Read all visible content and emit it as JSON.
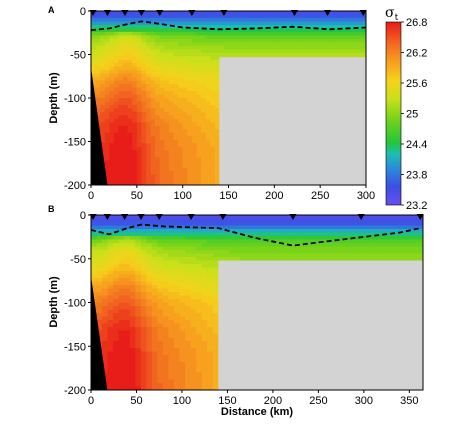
{
  "chart_data": [
    {
      "type": "heatmap",
      "panel_label": "A",
      "xlim": [
        0,
        300
      ],
      "ylim": [
        -200,
        0
      ],
      "xticks": [
        0,
        50,
        100,
        150,
        200,
        250,
        300
      ],
      "yticks": [
        0,
        -50,
        -100,
        -150,
        -200
      ],
      "ylabel": "Depth (m)",
      "xlabel": "",
      "station_markers_km": [
        0,
        18,
        37,
        55,
        75,
        110,
        145,
        222,
        258,
        297
      ],
      "pycnocline": {
        "x": [
          0,
          20,
          40,
          55,
          70,
          100,
          140,
          180,
          220,
          260,
          300
        ],
        "y": [
          -22,
          -20,
          -15,
          -12,
          -14,
          -19,
          -21,
          -20,
          -18,
          -21,
          -19
        ]
      },
      "bathymetry_wedge": {
        "x": [
          0,
          0,
          10,
          18
        ],
        "y": [
          -65,
          -200,
          -200,
          -200
        ]
      },
      "no_data_region": {
        "x_range": [
          140,
          300
        ],
        "y_range": [
          -200,
          -53
        ]
      },
      "contour_field_depth_profile": {
        "depth": [
          0,
          -10,
          -20,
          -30,
          -40,
          -60,
          -80,
          -100,
          -130,
          -160,
          -200
        ],
        "sigma_t_nearshore": [
          23.4,
          23.8,
          24.4,
          25.0,
          25.2,
          25.5,
          25.9,
          26.2,
          26.5,
          26.6,
          26.7
        ],
        "sigma_t_offshore": [
          23.4,
          23.8,
          24.3,
          24.8,
          25.0,
          25.3,
          25.5,
          25.6,
          25.7,
          25.8,
          25.8
        ]
      }
    },
    {
      "type": "heatmap",
      "panel_label": "B",
      "xlim": [
        0,
        365
      ],
      "ylim": [
        -200,
        0
      ],
      "xticks": [
        0,
        50,
        100,
        150,
        200,
        250,
        300,
        350
      ],
      "yticks": [
        0,
        -50,
        -100,
        -150,
        -200
      ],
      "ylabel": "Depth (m)",
      "xlabel": "Distance (km)",
      "station_markers_km": [
        0,
        18,
        37,
        55,
        75,
        110,
        145,
        222,
        297,
        362
      ],
      "pycnocline": {
        "x": [
          0,
          20,
          40,
          55,
          80,
          110,
          140,
          180,
          222,
          260,
          300,
          340,
          362
        ],
        "y": [
          -17,
          -22,
          -15,
          -11,
          -13,
          -14,
          -15,
          -26,
          -35,
          -30,
          -25,
          -20,
          -15
        ]
      },
      "bathymetry_wedge": {
        "x": [
          0,
          0,
          8,
          18
        ],
        "y": [
          -70,
          -200,
          -200,
          -200
        ]
      },
      "no_data_region": {
        "x_range": [
          140,
          365
        ],
        "y_range": [
          -200,
          -52
        ]
      },
      "contour_field_depth_profile": {
        "depth": [
          0,
          -10,
          -20,
          -30,
          -40,
          -60,
          -80,
          -100,
          -130,
          -160,
          -200
        ],
        "sigma_t_nearshore": [
          23.3,
          23.6,
          24.2,
          24.9,
          25.2,
          25.5,
          25.9,
          26.2,
          26.5,
          26.6,
          26.7
        ],
        "sigma_t_offshore": [
          23.3,
          23.6,
          24.2,
          24.7,
          24.9,
          25.2,
          25.4,
          25.6,
          25.7,
          25.8,
          25.8
        ]
      }
    }
  ],
  "colorbar": {
    "title": "σ",
    "title_sub": "t",
    "range": [
      23.2,
      26.8
    ],
    "ticks": [
      "26.8",
      "26.2",
      "25.6",
      "25",
      "24.4",
      "23.8",
      "23.2"
    ],
    "colors": [
      "#e8201a",
      "#f25620",
      "#f9a21e",
      "#d9e21c",
      "#7fd21a",
      "#28c436",
      "#1aa7c8",
      "#2b56e4",
      "#6a4df0"
    ]
  },
  "colors": {
    "no_data": "#d3d3d3",
    "bathymetry": "#000000",
    "pycnocline": "#000000"
  }
}
